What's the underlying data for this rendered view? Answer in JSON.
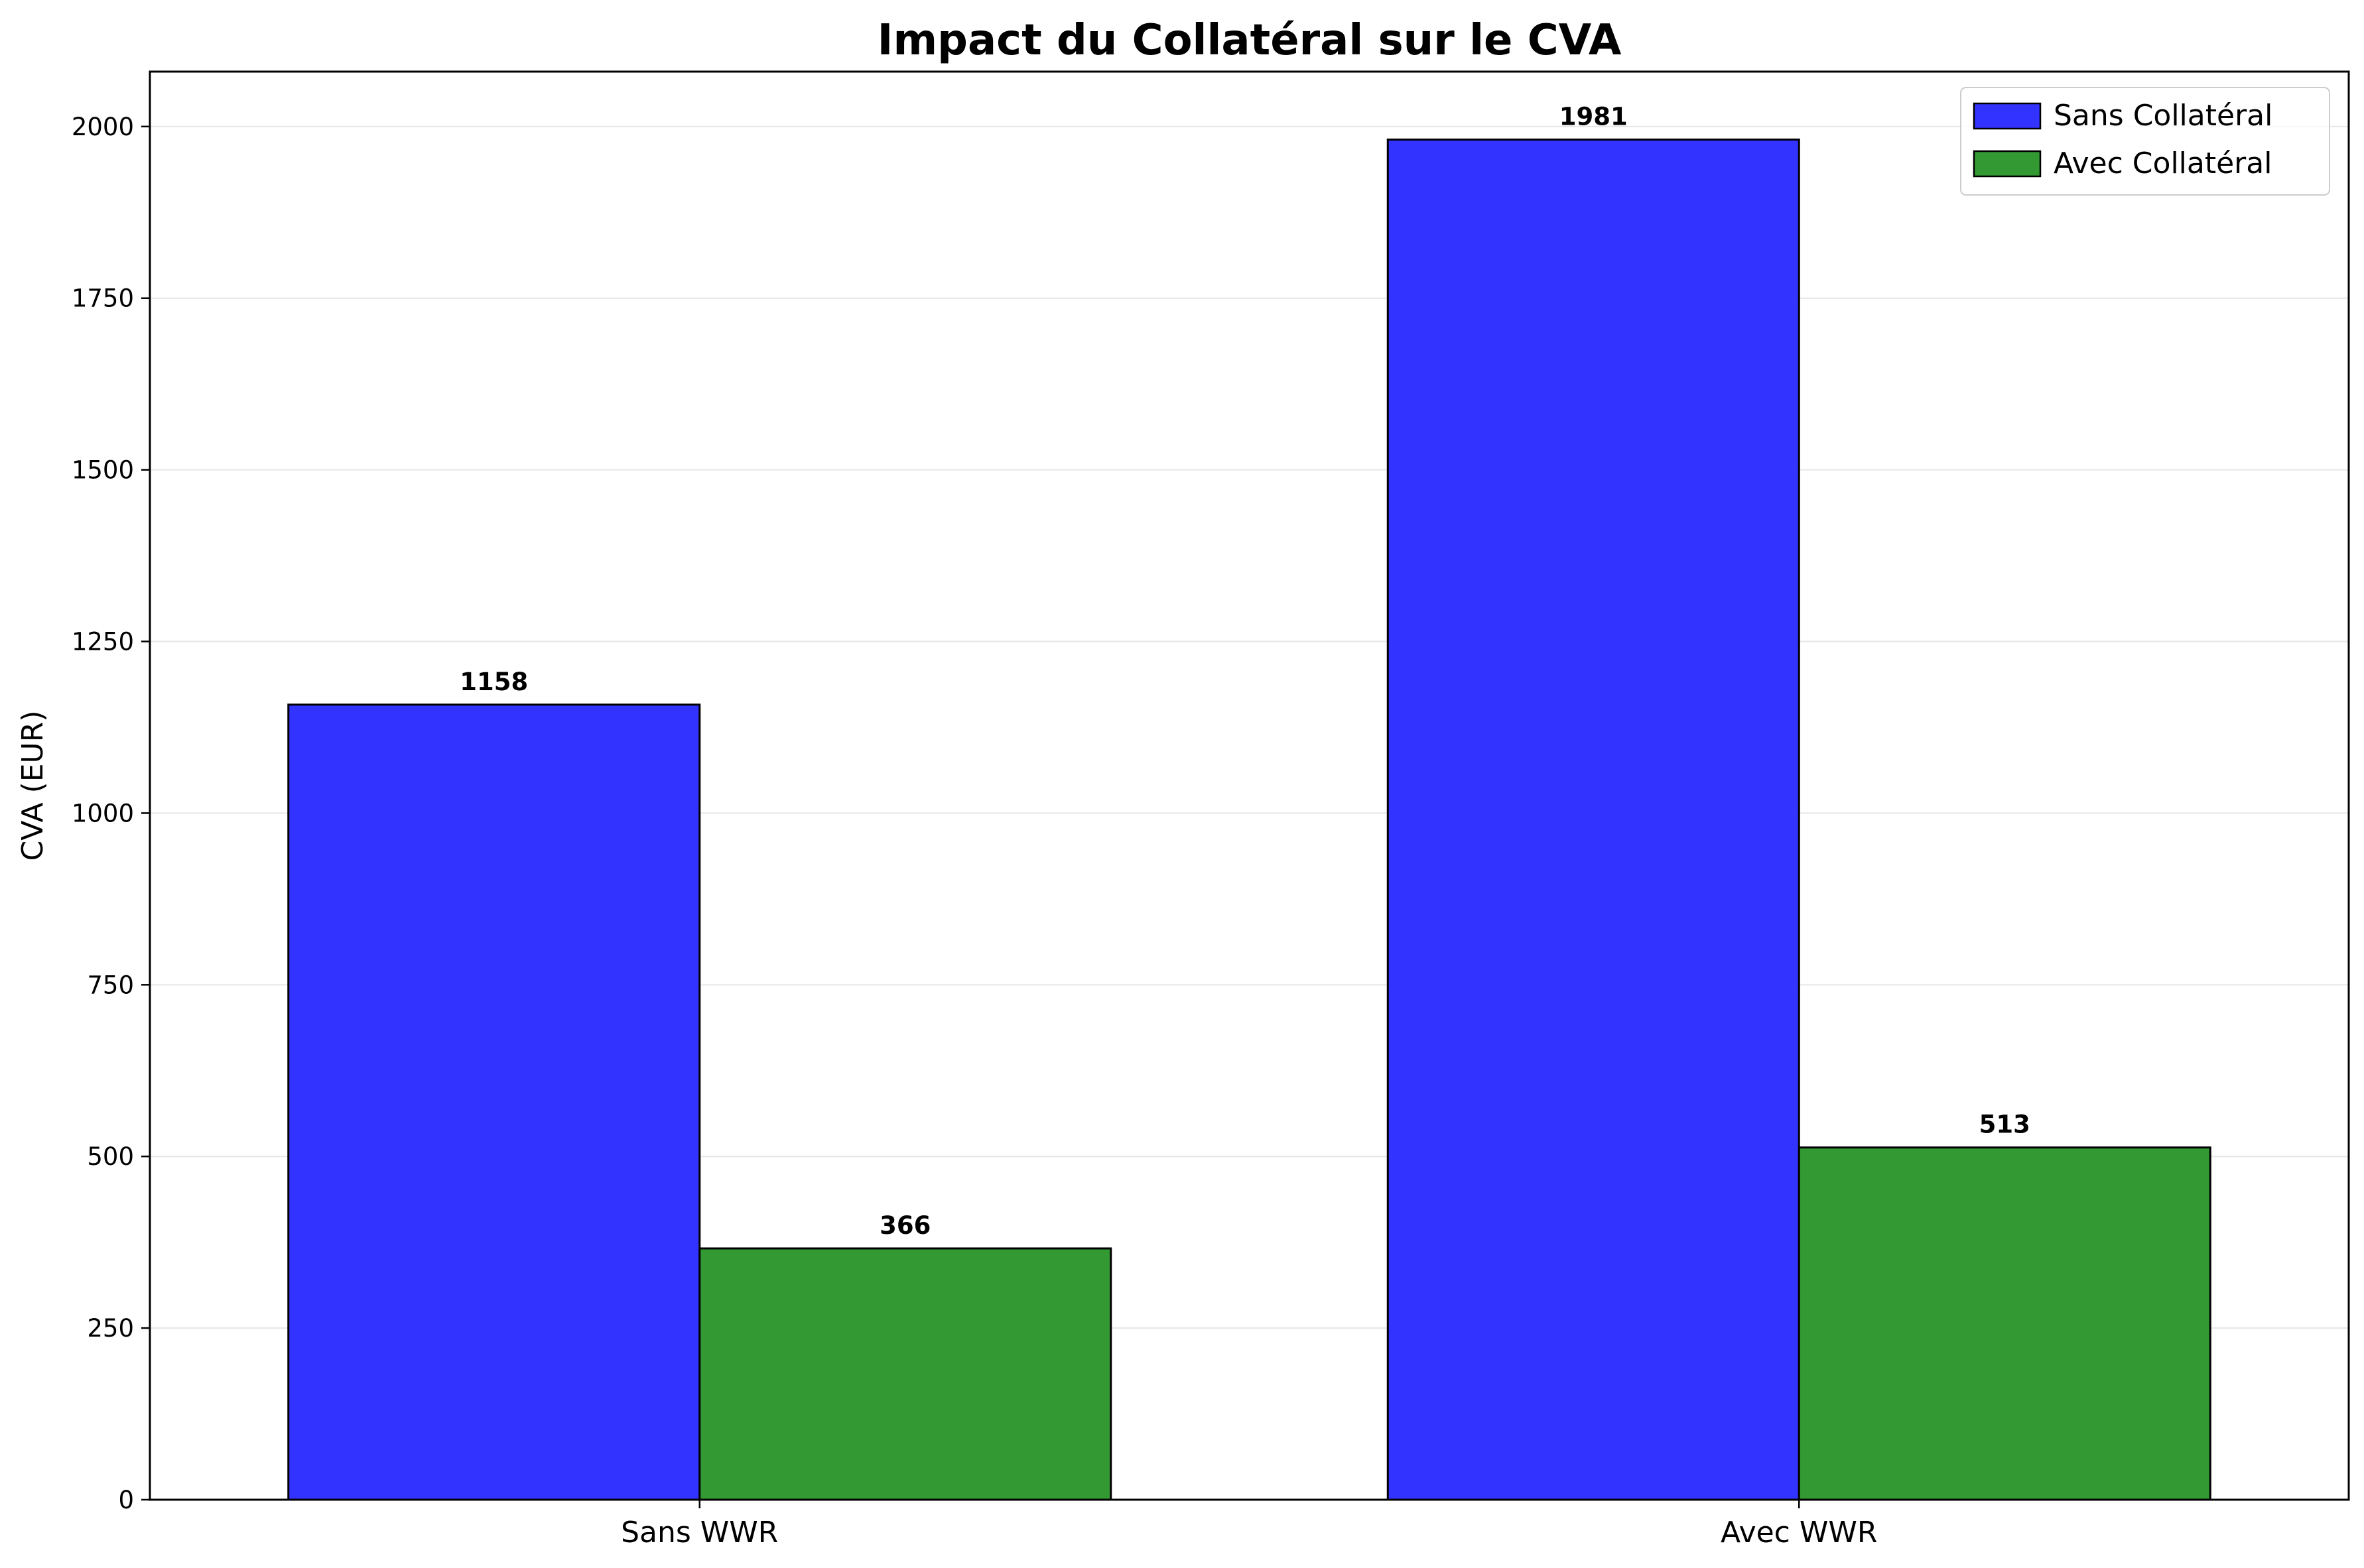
{
  "chart_data": {
    "type": "bar",
    "title": "Impact du Collatéral sur le CVA",
    "xlabel": "",
    "ylabel": "CVA (EUR)",
    "categories": [
      "Sans WWR",
      "Avec WWR"
    ],
    "series": [
      {
        "name": "Sans Collatéral",
        "values": [
          1158,
          1981
        ],
        "color": "#3333ff",
        "labels": [
          "1158",
          "1981"
        ]
      },
      {
        "name": "Avec Collatéral",
        "values": [
          366,
          513
        ],
        "color": "#339933",
        "labels": [
          "366",
          "513"
        ]
      }
    ],
    "ylim": [
      0,
      2080
    ],
    "yticks": [
      0,
      250,
      500,
      750,
      1000,
      1250,
      1500,
      1750,
      2000
    ],
    "ytick_labels": [
      "0",
      "250",
      "500",
      "750",
      "1000",
      "1250",
      "1500",
      "1750",
      "2000"
    ],
    "grid": "y",
    "legend": "top-right",
    "colors": {
      "edge": "#000000",
      "grid": "#e6e6e6"
    }
  }
}
